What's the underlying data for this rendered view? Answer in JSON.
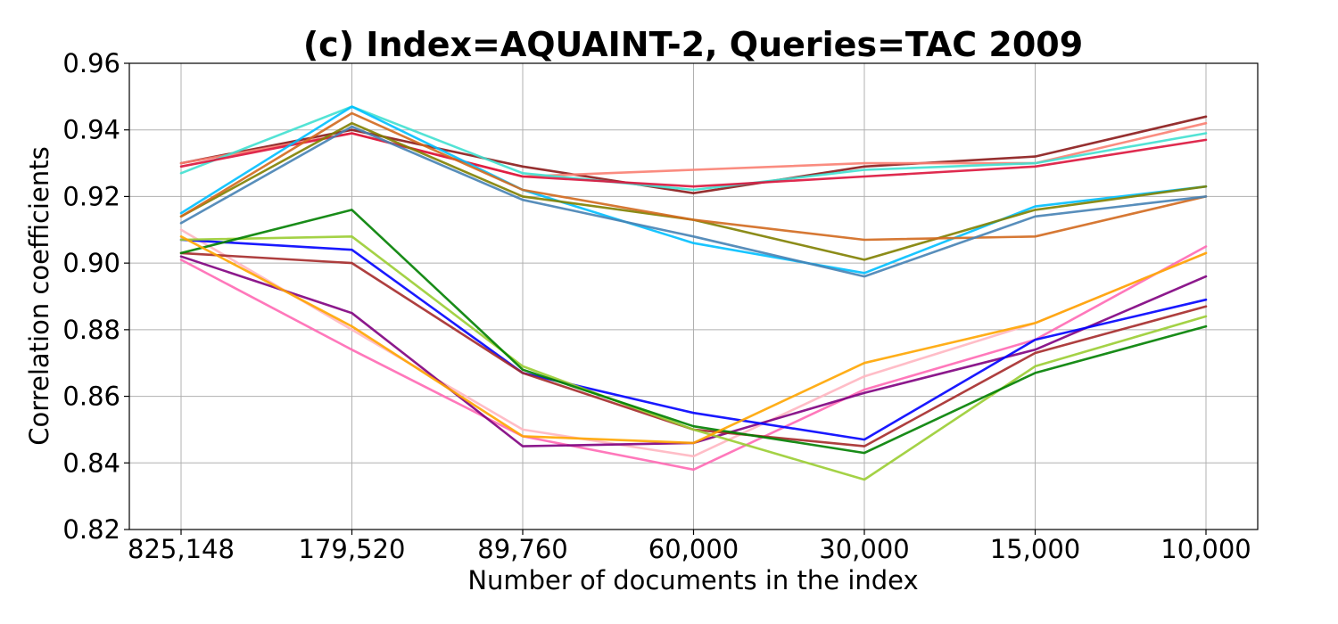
{
  "chart_data": {
    "type": "line",
    "title": "(c) Index=AQUAINT-2, Queries=TAC 2009",
    "xlabel": "Number of documents in the index",
    "ylabel": "Correlation coefficients",
    "categories": [
      "825,148",
      "179,520",
      "89,760",
      "60,000",
      "30,000",
      "15,000",
      "10,000"
    ],
    "ylim": [
      0.82,
      0.96
    ],
    "yticks": [
      "0.82",
      "0.84",
      "0.86",
      "0.88",
      "0.90",
      "0.92",
      "0.94",
      "0.96"
    ],
    "grid": true,
    "series": [
      {
        "color": "#8b1a1a",
        "values": [
          0.93,
          0.94,
          0.929,
          0.921,
          0.929,
          0.932,
          0.944
        ]
      },
      {
        "color": "#fa8072",
        "values": [
          0.93,
          0.939,
          0.926,
          0.928,
          0.93,
          0.93,
          0.942
        ]
      },
      {
        "color": "#40e0d0",
        "values": [
          0.927,
          0.947,
          0.927,
          0.922,
          0.928,
          0.93,
          0.939
        ]
      },
      {
        "color": "#dc143c",
        "values": [
          0.929,
          0.939,
          0.926,
          0.923,
          0.926,
          0.929,
          0.937
        ]
      },
      {
        "color": "#00bfff",
        "values": [
          0.915,
          0.947,
          0.922,
          0.906,
          0.897,
          0.917,
          0.923
        ]
      },
      {
        "color": "#808000",
        "values": [
          0.914,
          0.942,
          0.92,
          0.913,
          0.901,
          0.916,
          0.923
        ]
      },
      {
        "color": "#d2691e",
        "values": [
          0.914,
          0.945,
          0.922,
          0.913,
          0.907,
          0.908,
          0.92
        ]
      },
      {
        "color": "#4682b4",
        "values": [
          0.912,
          0.941,
          0.919,
          0.908,
          0.896,
          0.914,
          0.92
        ]
      },
      {
        "color": "#ff69b4",
        "values": [
          0.901,
          0.874,
          0.848,
          0.838,
          0.862,
          0.877,
          0.905
        ]
      },
      {
        "color": "#ffb6c1",
        "values": [
          0.91,
          0.88,
          0.85,
          0.842,
          0.866,
          0.882,
          0.903
        ]
      },
      {
        "color": "#800080",
        "values": [
          0.902,
          0.885,
          0.845,
          0.846,
          0.861,
          0.874,
          0.896
        ]
      },
      {
        "color": "#0000ff",
        "values": [
          0.907,
          0.904,
          0.867,
          0.855,
          0.847,
          0.877,
          0.889
        ]
      },
      {
        "color": "#a52a2a",
        "values": [
          0.903,
          0.9,
          0.867,
          0.85,
          0.845,
          0.873,
          0.887
        ]
      },
      {
        "color": "#9acd32",
        "values": [
          0.907,
          0.908,
          0.869,
          0.85,
          0.835,
          0.869,
          0.884
        ]
      },
      {
        "color": "#008000",
        "values": [
          0.903,
          0.916,
          0.868,
          0.851,
          0.843,
          0.867,
          0.881
        ]
      },
      {
        "color": "#ffa500",
        "values": [
          0.908,
          0.881,
          0.848,
          0.846,
          0.87,
          0.882,
          0.903
        ]
      }
    ]
  }
}
